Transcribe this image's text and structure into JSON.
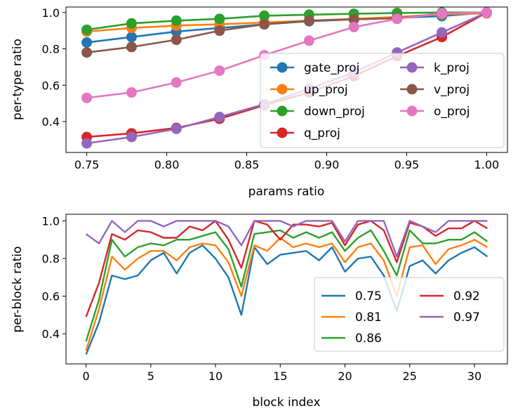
{
  "colors": {
    "blue": "#1f77b4",
    "orange": "#ff7f0e",
    "green": "#2ca02c",
    "red": "#d62728",
    "purple": "#9467bd",
    "brown": "#8c564b",
    "pink": "#e377c2"
  },
  "chart_data": [
    {
      "type": "line",
      "xlabel": "params ratio",
      "ylabel": "per-type ratio",
      "xlim": [
        0.737,
        1.013
      ],
      "ylim": [
        0.23,
        1.03
      ],
      "xticks": [
        0.75,
        0.8,
        0.85,
        0.9,
        0.95,
        1.0
      ],
      "xtick_labels": [
        "0.75",
        "0.80",
        "0.85",
        "0.90",
        "0.95",
        "1.00"
      ],
      "yticks": [
        0.4,
        0.6,
        0.8,
        1.0
      ],
      "ytick_labels": [
        "0.4",
        "0.6",
        "0.8",
        "1.0"
      ],
      "legend": {
        "position": "lower-right",
        "columns": 2
      },
      "x": [
        0.75,
        0.778,
        0.806,
        0.833,
        0.861,
        0.889,
        0.917,
        0.944,
        0.972,
        1.0
      ],
      "series": [
        {
          "name": "gate_proj",
          "color": "#1f77b4",
          "values": [
            0.835,
            0.865,
            0.895,
            0.915,
            0.935,
            0.952,
            0.962,
            0.97,
            0.98,
            1.0
          ]
        },
        {
          "name": "up_proj",
          "color": "#ff7f0e",
          "values": [
            0.895,
            0.915,
            0.928,
            0.935,
            0.945,
            0.955,
            0.965,
            0.975,
            0.99,
            0.995
          ]
        },
        {
          "name": "down_proj",
          "color": "#2ca02c",
          "values": [
            0.905,
            0.94,
            0.955,
            0.965,
            0.982,
            0.988,
            0.993,
            0.997,
            1.0,
            1.0
          ]
        },
        {
          "name": "q_proj",
          "color": "#d62728",
          "values": [
            0.315,
            0.335,
            0.365,
            0.415,
            0.49,
            0.56,
            0.65,
            0.76,
            0.865,
            1.0
          ]
        },
        {
          "name": "k_proj",
          "color": "#9467bd",
          "values": [
            0.28,
            0.315,
            0.36,
            0.425,
            0.495,
            0.58,
            0.67,
            0.78,
            0.89,
            1.0
          ]
        },
        {
          "name": "v_proj",
          "color": "#8c564b",
          "values": [
            0.78,
            0.81,
            0.85,
            0.9,
            0.935,
            0.955,
            0.962,
            0.968,
            0.995,
            1.0
          ]
        },
        {
          "name": "o_proj",
          "color": "#e377c2",
          "values": [
            0.53,
            0.56,
            0.615,
            0.68,
            0.765,
            0.845,
            0.92,
            0.965,
            0.995,
            1.0
          ]
        }
      ]
    },
    {
      "type": "line",
      "xlabel": "block index",
      "ylabel": "per-block ratio",
      "xlim": [
        -1.55,
        32.55
      ],
      "ylim": [
        0.24,
        1.035
      ],
      "xticks": [
        0,
        5,
        10,
        15,
        20,
        25,
        30
      ],
      "xtick_labels": [
        "0",
        "5",
        "10",
        "15",
        "20",
        "25",
        "30"
      ],
      "yticks": [
        0.4,
        0.6,
        0.8,
        1.0
      ],
      "ytick_labels": [
        "0.4",
        "0.6",
        "0.8",
        "1.0"
      ],
      "legend": {
        "position": "lower-right",
        "columns": 2
      },
      "x": [
        0,
        1,
        2,
        3,
        4,
        5,
        6,
        7,
        8,
        9,
        10,
        11,
        12,
        13,
        14,
        15,
        16,
        17,
        18,
        19,
        20,
        21,
        22,
        23,
        24,
        25,
        26,
        27,
        28,
        29,
        30,
        31
      ],
      "series": [
        {
          "name": "0.75",
          "color": "#1f77b4",
          "values": [
            0.29,
            0.46,
            0.71,
            0.69,
            0.71,
            0.79,
            0.83,
            0.72,
            0.83,
            0.87,
            0.8,
            0.7,
            0.5,
            0.86,
            0.77,
            0.82,
            0.83,
            0.84,
            0.79,
            0.86,
            0.73,
            0.8,
            0.81,
            0.71,
            0.52,
            0.76,
            0.79,
            0.72,
            0.79,
            0.83,
            0.86,
            0.81
          ]
        },
        {
          "name": "0.81",
          "color": "#ff7f0e",
          "values": [
            0.31,
            0.53,
            0.81,
            0.74,
            0.8,
            0.84,
            0.84,
            0.79,
            0.86,
            0.88,
            0.87,
            0.78,
            0.6,
            0.87,
            0.84,
            0.91,
            0.86,
            0.88,
            0.86,
            0.88,
            0.78,
            0.86,
            0.88,
            0.79,
            0.6,
            0.86,
            0.87,
            0.77,
            0.85,
            0.87,
            0.9,
            0.86
          ]
        },
        {
          "name": "0.86",
          "color": "#2ca02c",
          "values": [
            0.36,
            0.58,
            0.9,
            0.81,
            0.86,
            0.88,
            0.87,
            0.9,
            0.9,
            0.92,
            0.94,
            0.85,
            0.65,
            0.93,
            0.94,
            0.95,
            0.91,
            0.94,
            0.91,
            0.94,
            0.84,
            0.91,
            0.95,
            0.84,
            0.71,
            0.95,
            0.88,
            0.88,
            0.9,
            0.9,
            0.94,
            0.89
          ]
        },
        {
          "name": "0.92",
          "color": "#d62728",
          "values": [
            0.49,
            0.67,
            0.93,
            0.9,
            0.95,
            0.94,
            0.91,
            0.91,
            0.97,
            0.95,
            1.0,
            0.9,
            0.75,
            1.0,
            0.98,
            0.9,
            0.98,
            0.98,
            0.97,
            0.99,
            0.87,
            0.98,
            1.0,
            0.95,
            0.78,
            0.99,
            0.97,
            0.92,
            0.96,
            0.96,
            1.0,
            0.96
          ]
        },
        {
          "name": "0.97",
          "color": "#9467bd",
          "values": [
            0.93,
            0.88,
            1.0,
            0.94,
            1.0,
            1.0,
            0.97,
            1.0,
            1.0,
            1.0,
            1.0,
            0.97,
            0.87,
            1.0,
            1.0,
            1.0,
            0.97,
            1.0,
            1.0,
            1.0,
            0.89,
            1.0,
            1.0,
            1.0,
            0.81,
            1.0,
            0.97,
            0.94,
            1.0,
            1.0,
            1.0,
            1.0
          ]
        }
      ]
    }
  ]
}
